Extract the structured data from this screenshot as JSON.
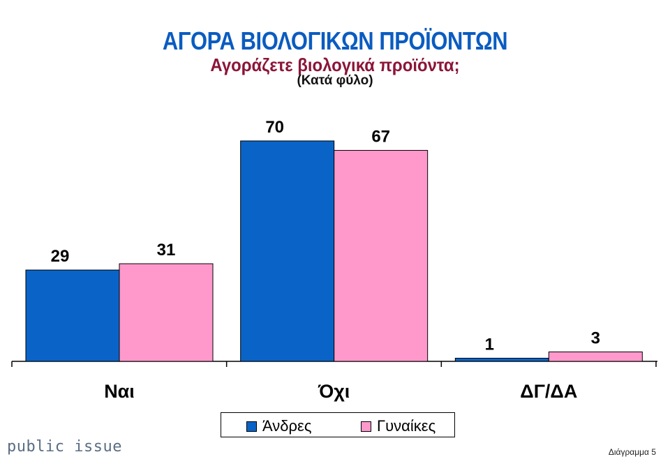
{
  "header": {
    "title": "ΑΓΟΡΑ ΒΙΟΛΟΓΙΚΩΝ ΠΡΟΪΟΝΤΩΝ",
    "subtitle": "Αγοράζετε βιολογικά προϊόντα;",
    "note": "(Κατά φύλο)"
  },
  "chart_data": {
    "type": "bar",
    "categories": [
      "Ναι",
      "Όχι",
      "ΔΓ/ΔΑ"
    ],
    "series": [
      {
        "name": "Άνδρες",
        "values": [
          29,
          70,
          1
        ],
        "color": "#0a64c8"
      },
      {
        "name": "Γυναίκες",
        "values": [
          31,
          67,
          3
        ],
        "color": "#ff99cc"
      }
    ],
    "ylim": [
      0,
      70
    ],
    "grid": false,
    "legend_position": "bottom"
  },
  "footer": {
    "brand": "public issue",
    "page_label": "Διάγραμμα 5"
  }
}
